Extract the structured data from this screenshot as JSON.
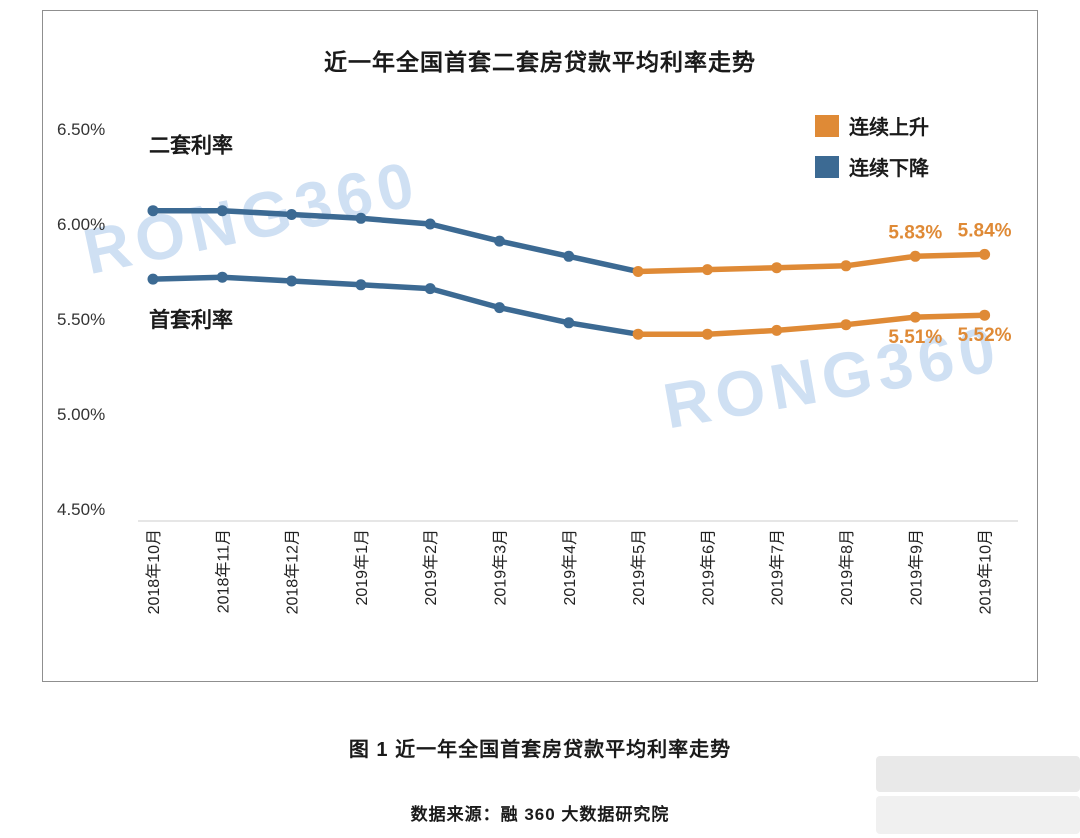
{
  "page": {
    "caption": "图 1  近一年全国首套房贷款平均利率走势",
    "source": "数据来源：融 360 大数据研究院"
  },
  "chart_data": {
    "type": "line",
    "title": "近一年全国首套二套房贷款平均利率走势",
    "watermark": "RONG360",
    "grid": false,
    "legend_position": "top-right",
    "categories": [
      "2018年10月",
      "2018年11月",
      "2018年12月",
      "2019年1月",
      "2019年2月",
      "2019年3月",
      "2019年4月",
      "2019年5月",
      "2019年6月",
      "2019年7月",
      "2019年8月",
      "2019年9月",
      "2019年10月"
    ],
    "y_ticks": [
      {
        "label": "6.50%",
        "value": 6.5
      },
      {
        "label": "6.00%",
        "value": 6.0
      },
      {
        "label": "5.50%",
        "value": 5.5
      },
      {
        "label": "5.00%",
        "value": 5.0
      },
      {
        "label": "4.50%",
        "value": 4.5
      }
    ],
    "ylim": [
      4.5,
      6.5
    ],
    "series": [
      {
        "name": "二套利率",
        "values": [
          6.07,
          6.07,
          6.05,
          6.03,
          6.0,
          5.91,
          5.83,
          5.75,
          5.76,
          5.77,
          5.78,
          5.83,
          5.84
        ],
        "trend_split_index": 7,
        "point_labels": [
          {
            "index": 11,
            "text": "5.83%"
          },
          {
            "index": 12,
            "text": "5.84%"
          }
        ]
      },
      {
        "name": "首套利率",
        "values": [
          5.71,
          5.72,
          5.7,
          5.68,
          5.66,
          5.56,
          5.48,
          5.42,
          5.42,
          5.44,
          5.47,
          5.51,
          5.52
        ],
        "trend_split_index": 7,
        "point_labels": [
          {
            "index": 11,
            "text": "5.51%"
          },
          {
            "index": 12,
            "text": "5.52%"
          }
        ]
      }
    ],
    "legend": [
      {
        "label": "连续上升",
        "color": "#DF8A36"
      },
      {
        "label": "连续下降",
        "color": "#3C6A93"
      }
    ],
    "colors": {
      "rise": "#DF8A36",
      "decline": "#3C6A93",
      "watermark": "#A9C7EA"
    }
  }
}
